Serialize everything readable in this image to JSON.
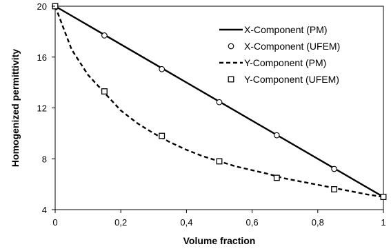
{
  "chart_data": {
    "type": "line",
    "xlabel": "Volume fraction",
    "ylabel": "Homogenized permittivity",
    "xlim": [
      0,
      1
    ],
    "ylim": [
      4,
      20
    ],
    "x_ticks": [
      "0",
      "0,2",
      "0,4",
      "0,6",
      "0,8",
      "1"
    ],
    "y_ticks": [
      "4",
      "8",
      "12",
      "16",
      "20"
    ],
    "grid": false,
    "legend_position": "top-right",
    "series": [
      {
        "name": "X-Component (PM)",
        "style": "solid",
        "marker": "none",
        "x": [
          0,
          1
        ],
        "y": [
          20,
          5
        ]
      },
      {
        "name": "X-Component (UFEM)",
        "style": "none",
        "marker": "circle",
        "x": [
          0,
          0.15,
          0.325,
          0.5,
          0.675,
          0.85,
          1
        ],
        "y": [
          20,
          17.7,
          15.05,
          12.45,
          9.85,
          7.2,
          5
        ]
      },
      {
        "name": "Y-Component (PM)",
        "style": "dashed",
        "marker": "none",
        "x": [
          0,
          0.05,
          0.1,
          0.15,
          0.2,
          0.25,
          0.3,
          0.35,
          0.4,
          0.45,
          0.5,
          0.55,
          0.6,
          0.65,
          0.7,
          0.75,
          0.8,
          0.85,
          0.9,
          0.95,
          1
        ],
        "y": [
          20,
          16.6,
          14.6,
          13.2,
          11.8,
          10.8,
          10.0,
          9.3,
          8.7,
          8.2,
          7.8,
          7.4,
          7.1,
          6.8,
          6.45,
          6.2,
          5.95,
          5.7,
          5.45,
          5.2,
          5.0
        ]
      },
      {
        "name": "Y-Component (UFEM)",
        "style": "none",
        "marker": "square",
        "x": [
          0,
          0.15,
          0.325,
          0.5,
          0.675,
          0.85,
          1
        ],
        "y": [
          20,
          13.3,
          9.8,
          7.8,
          6.5,
          5.6,
          5.0
        ]
      }
    ]
  }
}
